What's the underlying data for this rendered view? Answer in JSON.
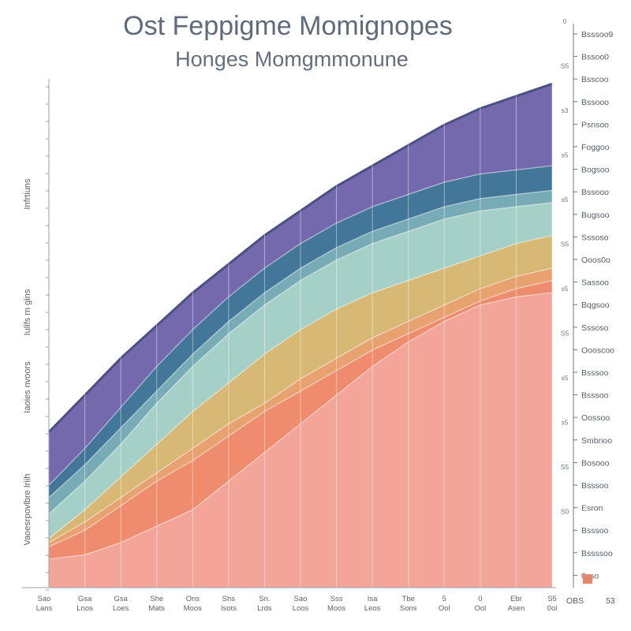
{
  "chart_data": {
    "type": "area",
    "title": "Ost Feppigme Momignopes",
    "subtitle": "Honges  Momgmmonune",
    "ylabels": [
      "Infrtiuns",
      "Iulifs rn gins",
      "Iaoies nvoors",
      "Vaoesrpovlbre Iriih"
    ],
    "x_ticks": [
      [
        "Sao",
        "Lans"
      ],
      [
        "Gsa",
        "Lnos"
      ],
      [
        "Gsa",
        "Loes"
      ],
      [
        "She",
        "Mats"
      ],
      [
        "Ons",
        "Moos"
      ],
      [
        "Shs",
        "Isots"
      ],
      [
        "Sn.",
        "Lrds"
      ],
      [
        "Sao",
        "Loos"
      ],
      [
        "Sss",
        "Moos"
      ],
      [
        "Isa",
        "Leos"
      ],
      [
        "Tbe",
        "Sons"
      ],
      [
        "5",
        "Ool"
      ],
      [
        "0",
        "Ool"
      ],
      [
        "Ebr",
        "Asen"
      ],
      [
        "S5",
        "0ol"
      ]
    ],
    "right_labels": [
      "Bsssoo9",
      "Bssoo0",
      "Bsscoo",
      "Bssooo",
      "Psnsoo",
      "Foggoo",
      "Bogsoo",
      "Bssooo",
      "Bugsoo",
      "Sssoso",
      "Ooos0o",
      "Sassoo",
      "Bqgsoo",
      "Sssoso",
      "Oooscoo",
      "Bsssoo",
      "Bsssoo",
      "Oossoo",
      "Smbnoo",
      "Bosooo",
      "Bsssoo",
      "Esron",
      "Bsssoo",
      "Bssssoo",
      "0sso"
    ],
    "right_numbers": [
      "0",
      "S5",
      "s3",
      "s5",
      "s5",
      "S5",
      "s5",
      "S5",
      "s5",
      "s5",
      "S5",
      "S0"
    ],
    "bottom_right": [
      "OBS",
      "53"
    ],
    "colors": [
      "#f3a79c",
      "#ef8a6e",
      "#e9a070",
      "#dcb56e",
      "#a9d3c9",
      "#7cb0b8",
      "#3f7897",
      "#6c61a8"
    ],
    "series_tops": [
      [
        7,
        8,
        11,
        15,
        19,
        26,
        33,
        40,
        47,
        54,
        60,
        65,
        69,
        71,
        72
      ],
      [
        10,
        14,
        20,
        26,
        31,
        37,
        43,
        48,
        53,
        58,
        62,
        66,
        70,
        73,
        75
      ],
      [
        11,
        16,
        22,
        28,
        34,
        40,
        45,
        51,
        56,
        61,
        65,
        69,
        73,
        76,
        78
      ],
      [
        12,
        19,
        27,
        35,
        43,
        50,
        57,
        63,
        68,
        72,
        75,
        78,
        81,
        84,
        86
      ],
      [
        18,
        26,
        35,
        45,
        54,
        62,
        69,
        75,
        80,
        84,
        87,
        90,
        92,
        93,
        94
      ],
      [
        22,
        30,
        39,
        48,
        57,
        65,
        72,
        78,
        83,
        87,
        90,
        93,
        95,
        96,
        97
      ],
      [
        25,
        34,
        44,
        54,
        63,
        71,
        78,
        84,
        89,
        93,
        96,
        99,
        101,
        102,
        103
      ],
      [
        38,
        47,
        56,
        64,
        72,
        79,
        86,
        92,
        98,
        103,
        108,
        113,
        117,
        120,
        123
      ]
    ],
    "ylim": [
      0,
      130
    ]
  }
}
